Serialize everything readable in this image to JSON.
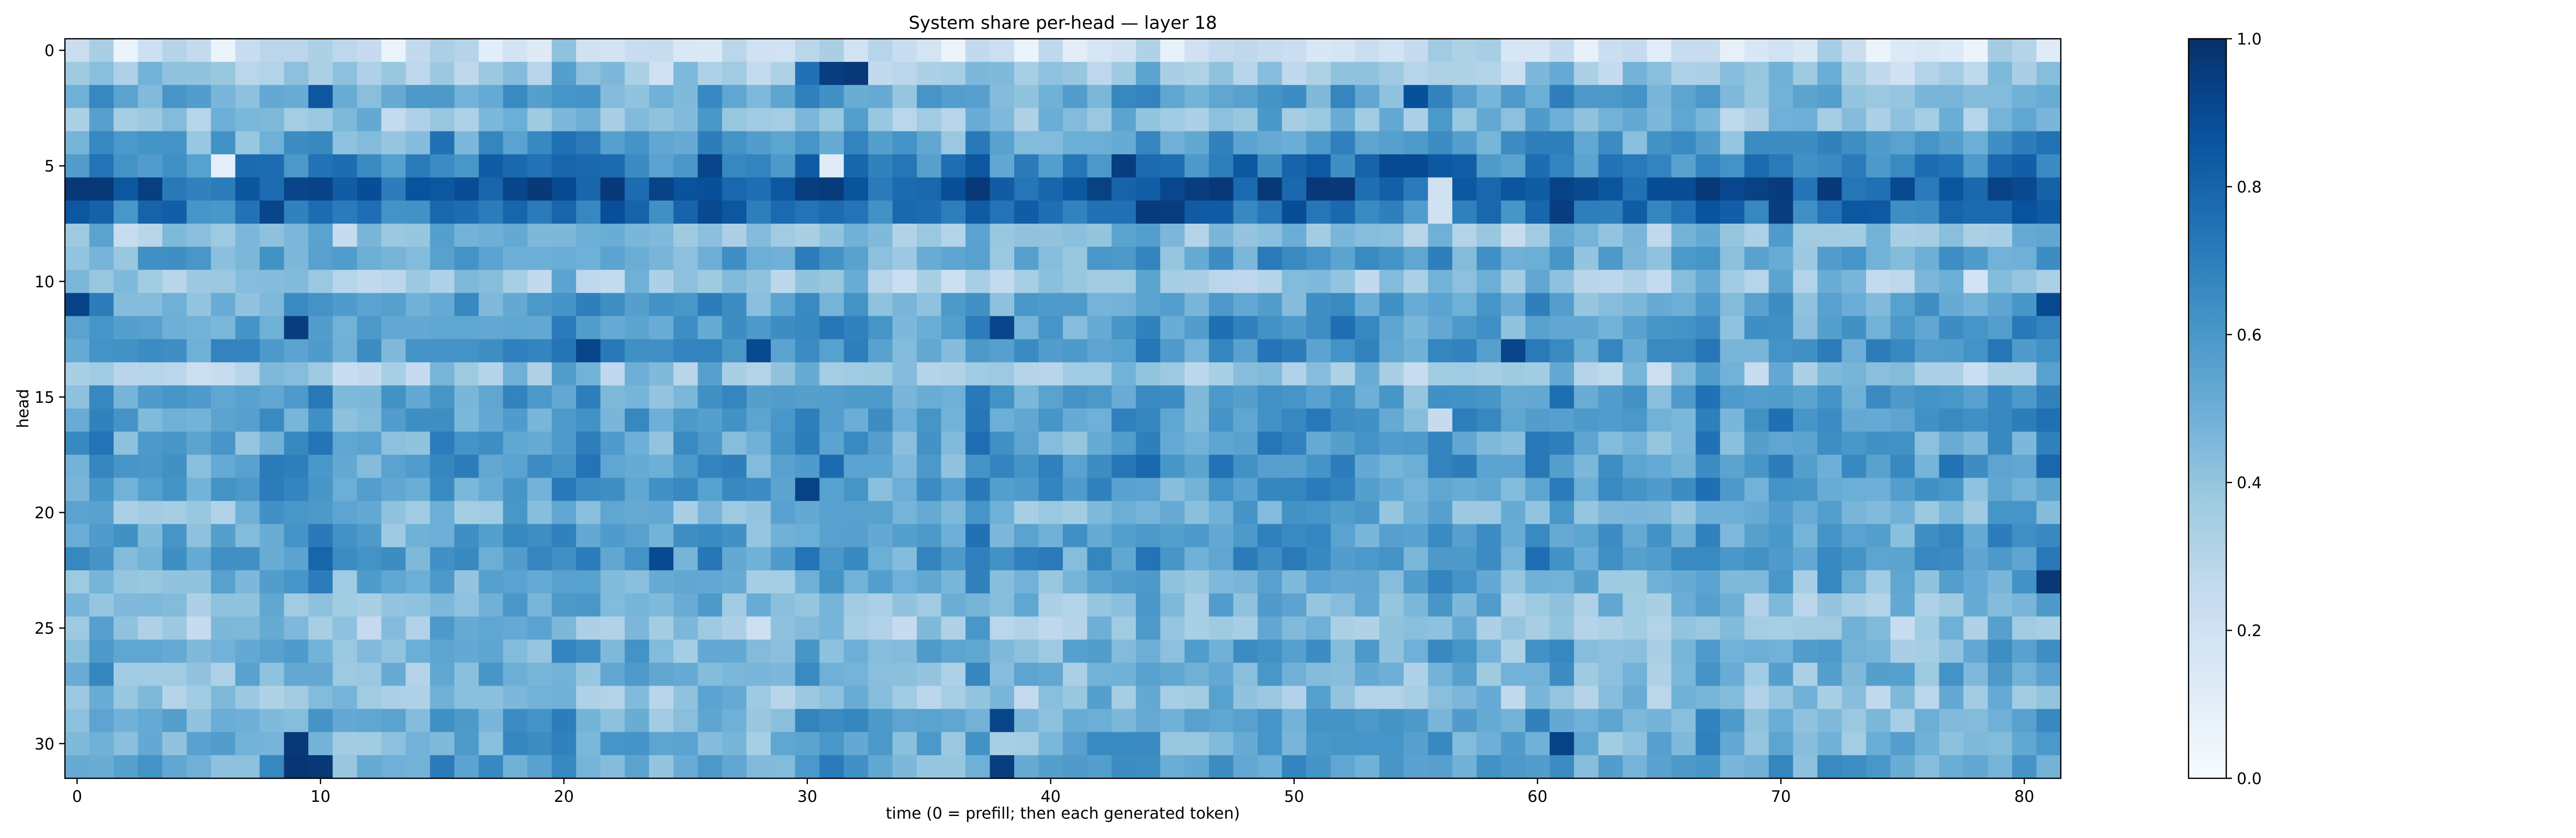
{
  "chart_data": {
    "type": "heatmap",
    "title": "System share per-head — layer 18",
    "xlabel": "time (0 = prefill; then each generated token)",
    "ylabel": "head",
    "n_rows": 32,
    "n_cols": 82,
    "xlim": [
      -0.5,
      81.5
    ],
    "ylim": [
      31.5,
      -0.5
    ],
    "x_ticks": [
      0,
      10,
      20,
      30,
      40,
      50,
      60,
      70,
      80
    ],
    "y_ticks": [
      0,
      5,
      10,
      15,
      20,
      25,
      30
    ],
    "colorbar": {
      "colormap": "Blues",
      "range": [
        0.0,
        1.0
      ],
      "ticks": [
        "0.0",
        "0.2",
        "0.4",
        "0.6",
        "0.8",
        "1.0"
      ]
    },
    "row_profile": [
      0.22,
      0.38,
      0.52,
      0.44,
      0.57,
      0.7,
      0.86,
      0.77,
      0.4,
      0.54,
      0.37,
      0.55,
      0.59,
      0.62,
      0.4,
      0.58,
      0.58,
      0.57,
      0.6,
      0.58,
      0.48,
      0.56,
      0.61,
      0.52,
      0.46,
      0.41,
      0.5,
      0.49,
      0.42,
      0.53,
      0.51,
      0.55
    ],
    "hotspots": [
      {
        "row": 0,
        "col": 81,
        "value": 0.12
      },
      {
        "row": 1,
        "col": 31,
        "value": 0.95
      },
      {
        "row": 1,
        "col": 32,
        "value": 0.97
      },
      {
        "row": 1,
        "col": 30,
        "value": 0.75
      },
      {
        "row": 2,
        "col": 10,
        "value": 0.85
      },
      {
        "row": 2,
        "col": 55,
        "value": 0.88
      },
      {
        "row": 5,
        "col": 6,
        "value": 0.1
      },
      {
        "row": 5,
        "col": 26,
        "value": 0.92
      },
      {
        "row": 5,
        "col": 31,
        "value": 0.12
      },
      {
        "row": 5,
        "col": 43,
        "value": 0.95
      },
      {
        "row": 5,
        "col": 54,
        "value": 0.9
      },
      {
        "row": 5,
        "col": 55,
        "value": 0.9
      },
      {
        "row": 6,
        "col": 0,
        "value": 0.97
      },
      {
        "row": 6,
        "col": 1,
        "value": 0.97
      },
      {
        "row": 6,
        "col": 30,
        "value": 0.95
      },
      {
        "row": 6,
        "col": 31,
        "value": 0.96
      },
      {
        "row": 6,
        "col": 56,
        "value": 0.2
      },
      {
        "row": 7,
        "col": 44,
        "value": 0.96
      },
      {
        "row": 7,
        "col": 45,
        "value": 0.95
      },
      {
        "row": 7,
        "col": 56,
        "value": 0.2
      },
      {
        "row": 11,
        "col": 0,
        "value": 0.93
      },
      {
        "row": 11,
        "col": 81,
        "value": 0.9
      },
      {
        "row": 12,
        "col": 9,
        "value": 0.95
      },
      {
        "row": 12,
        "col": 38,
        "value": 0.92
      },
      {
        "row": 13,
        "col": 21,
        "value": 0.92
      },
      {
        "row": 13,
        "col": 28,
        "value": 0.9
      },
      {
        "row": 13,
        "col": 59,
        "value": 0.92
      },
      {
        "row": 16,
        "col": 56,
        "value": 0.25
      },
      {
        "row": 19,
        "col": 30,
        "value": 0.93
      },
      {
        "row": 22,
        "col": 24,
        "value": 0.9
      },
      {
        "row": 23,
        "col": 81,
        "value": 0.97
      },
      {
        "row": 29,
        "col": 38,
        "value": 0.92
      },
      {
        "row": 30,
        "col": 9,
        "value": 0.97
      },
      {
        "row": 30,
        "col": 61,
        "value": 0.93
      },
      {
        "row": 31,
        "col": 9,
        "value": 0.98
      },
      {
        "row": 31,
        "col": 10,
        "value": 0.97
      },
      {
        "row": 31,
        "col": 38,
        "value": 0.95
      }
    ]
  }
}
